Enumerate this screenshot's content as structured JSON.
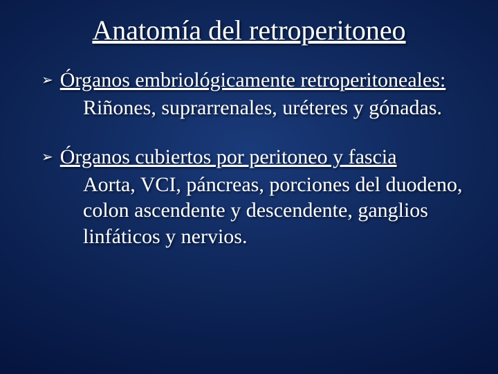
{
  "slide": {
    "background": {
      "gradient_center": "#1a3a7a",
      "gradient_mid": "#0d2455",
      "gradient_outer": "#061540",
      "gradient_edge": "#020818"
    },
    "title": {
      "text": "Anatomía del retroperitoneo",
      "fontsize": 40,
      "color": "#ffffff",
      "underline": true,
      "align": "center",
      "shadow_color": "#000000"
    },
    "bullets": [
      {
        "marker": "➢",
        "heading": "Órganos embriológicamente retroperitoneales:",
        "heading_underline": true,
        "body": "Riñones, suprarrenales, uréteres y gónadas."
      },
      {
        "marker": "➢",
        "heading": "Órganos cubiertos por peritoneo y fascia",
        "heading_underline": true,
        "body": "Aorta, VCI, páncreas, porciones del duodeno, colon ascendente y descendente, ganglios linfáticos y nervios."
      }
    ],
    "typography": {
      "font_family": "Times New Roman",
      "body_fontsize": 30,
      "marker_fontsize": 20,
      "text_color": "#ffffff",
      "text_shadow": "2px 2px 3px rgba(0,0,0,0.6)"
    }
  }
}
